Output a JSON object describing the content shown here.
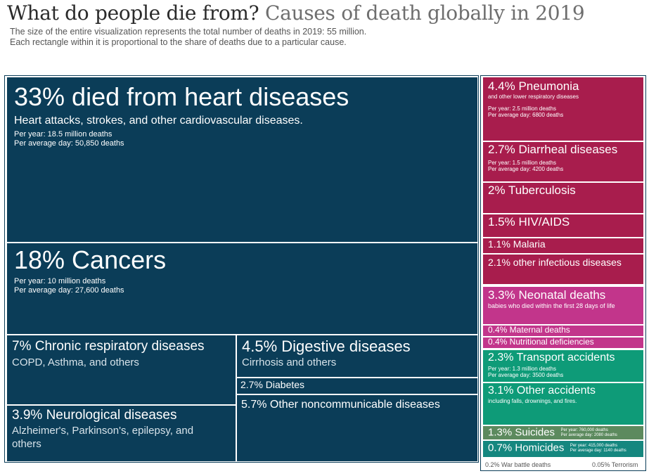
{
  "header": {
    "title": "What do people die from?",
    "title_light": "Causes of death globally in 2019",
    "subtitle_1": "The size of the entire visualization represents the total number of deaths in 2019: 55 million.",
    "subtitle_2": "Each rectangle within it is proportional to the share of deaths due to a particular cause."
  },
  "chart_data": {
    "type": "treemap",
    "title": "What do people die from? Causes of death globally in 2019",
    "total_deaths": "55 million",
    "colors": {
      "noncommunicable": "#0b3d58",
      "infectious": "#a81d4d",
      "maternal_neonatal": "#c2358b",
      "injuries": "#0e9b78",
      "suicides": "#5c8a5e",
      "homicides": "#15877f"
    },
    "items": [
      {
        "label": "33% died from heart diseases",
        "share": 33,
        "group": "noncommunicable",
        "desc": "Heart attacks, strokes, and other cardiovascular diseases.",
        "per_year": "Per year: 18.5 million deaths",
        "per_day": "Per average day: 50,850 deaths"
      },
      {
        "label": "18% Cancers",
        "share": 18,
        "group": "noncommunicable",
        "per_year": "Per year: 10 million deaths",
        "per_day": "Per average day: 27,600 deaths"
      },
      {
        "label": "7% Chronic respiratory diseases",
        "share": 7,
        "group": "noncommunicable",
        "desc": "COPD, Asthma, and others"
      },
      {
        "label": "4.5% Digestive diseases",
        "share": 4.5,
        "group": "noncommunicable",
        "desc": "Cirrhosis and others"
      },
      {
        "label": "2.7% Diabetes",
        "share": 2.7,
        "group": "noncommunicable"
      },
      {
        "label": "5.7% Other noncommunicable diseases",
        "share": 5.7,
        "group": "noncommunicable"
      },
      {
        "label": "3.9% Neurological diseases",
        "share": 3.9,
        "group": "noncommunicable",
        "desc": "Alzheimer's, Parkinson's, epilepsy, and others"
      },
      {
        "label": "4.4% Pneumonia",
        "share": 4.4,
        "group": "infectious",
        "desc": "and other lower respiratory diseases",
        "per_year": "Per year: 2.5 million deaths",
        "per_day": "Per average day: 6800 deaths"
      },
      {
        "label": "2.7% Diarrheal diseases",
        "share": 2.7,
        "group": "infectious",
        "per_year": "Per year: 1.5 million deaths",
        "per_day": "Per average day: 4200 deaths"
      },
      {
        "label": "2% Tuberculosis",
        "share": 2,
        "group": "infectious"
      },
      {
        "label": "1.5% HIV/AIDS",
        "share": 1.5,
        "group": "infectious"
      },
      {
        "label": "1.1% Malaria",
        "share": 1.1,
        "group": "infectious"
      },
      {
        "label": "2.1% other infectious diseases",
        "share": 2.1,
        "group": "infectious"
      },
      {
        "label": "3.3% Neonatal deaths",
        "share": 3.3,
        "group": "maternal_neonatal",
        "desc": "babies who died within the first 28 days of life"
      },
      {
        "label": "0.4% Maternal deaths",
        "share": 0.4,
        "group": "maternal_neonatal"
      },
      {
        "label": "0.4% Nutritional deficiencies",
        "share": 0.4,
        "group": "maternal_neonatal"
      },
      {
        "label": "2.3% Transport accidents",
        "share": 2.3,
        "group": "injuries",
        "per_year": "Per year: 1.3 million deaths",
        "per_day": "Per average day: 3500 deaths"
      },
      {
        "label": "3.1% Other accidents",
        "share": 3.1,
        "group": "injuries",
        "desc": "including falls, drownings, and fires."
      },
      {
        "label": "1.3% Suicides",
        "share": 1.3,
        "group": "suicides",
        "per_year": "Per year: 760,000 deaths",
        "per_day": "Per average day: 2080 deaths"
      },
      {
        "label": "0.7% Homicides",
        "share": 0.7,
        "group": "homicides",
        "per_year": "Per year: 415,000 deaths",
        "per_day": "Per average day: 1140 deaths"
      },
      {
        "label": "0.2% War battle deaths",
        "share": 0.2,
        "group": "other"
      },
      {
        "label": "0.05% Terrorism",
        "share": 0.05,
        "group": "other"
      }
    ]
  }
}
